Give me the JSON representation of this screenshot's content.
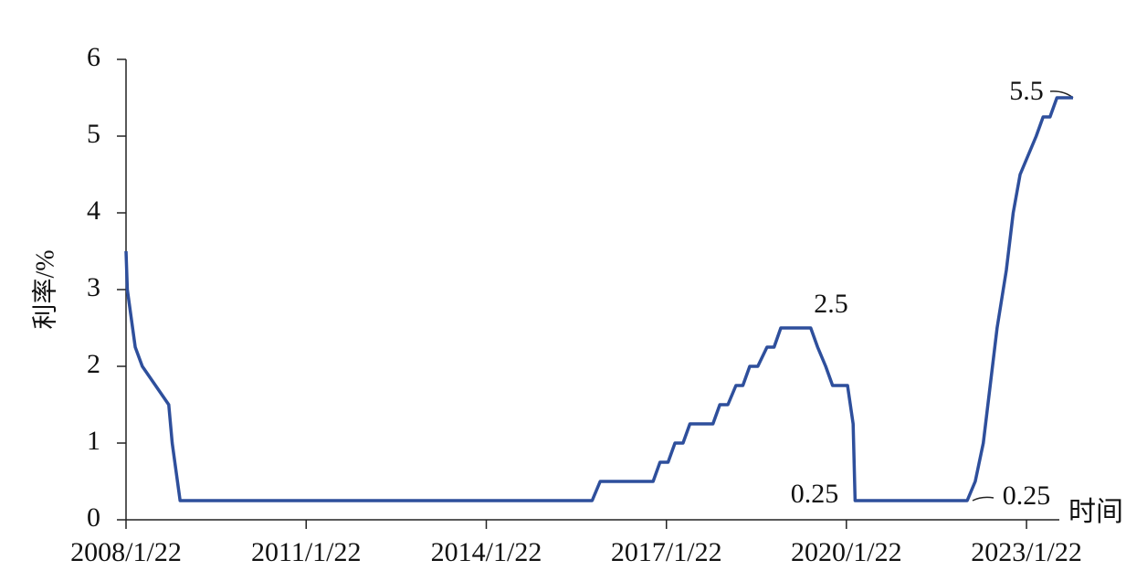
{
  "chart_data": {
    "type": "line",
    "y_label": "利率/%",
    "x_label": "时间",
    "x": [
      "2008/1/22",
      "2008/1/30",
      "2008/3/18",
      "2008/4/30",
      "2008/10/8",
      "2008/10/29",
      "2008/12/16",
      "2015/10/28",
      "2015/12/16",
      "2016/11/2",
      "2016/12/14",
      "2017/2/1",
      "2017/3/15",
      "2017/5/3",
      "2017/6/14",
      "2017/11/1",
      "2017/12/13",
      "2018/1/31",
      "2018/3/21",
      "2018/5/2",
      "2018/6/13",
      "2018/8/1",
      "2018/9/26",
      "2018/11/8",
      "2018/12/19",
      "2019/6/19",
      "2019/7/31",
      "2019/9/18",
      "2019/10/30",
      "2020/1/29",
      "2020/3/3",
      "2020/3/15",
      "2022/1/26",
      "2022/3/16",
      "2022/5/4",
      "2022/6/15",
      "2022/7/27",
      "2022/9/21",
      "2022/11/2",
      "2022/12/14",
      "2023/2/1",
      "2023/3/22",
      "2023/5/3",
      "2023/6/14",
      "2023/7/26",
      "2023/11/1"
    ],
    "values": [
      3.5,
      3.0,
      2.25,
      2.0,
      1.5,
      1.0,
      0.25,
      0.25,
      0.5,
      0.5,
      0.75,
      0.75,
      1.0,
      1.0,
      1.25,
      1.25,
      1.5,
      1.5,
      1.75,
      1.75,
      2.0,
      2.0,
      2.25,
      2.25,
      2.5,
      2.5,
      2.25,
      2.0,
      1.75,
      1.75,
      1.25,
      0.25,
      0.25,
      0.5,
      1.0,
      1.75,
      2.5,
      3.25,
      4.0,
      4.5,
      4.75,
      5.0,
      5.25,
      5.25,
      5.5,
      5.5
    ],
    "color": "#2e4f9c",
    "xlim": [
      "2008/1/22",
      "2023/11/1"
    ],
    "xticks": [
      "2008/1/22",
      "2011/1/22",
      "2014/1/22",
      "2017/1/22",
      "2020/1/22",
      "2023/1/22"
    ],
    "ylim": [
      0,
      6
    ],
    "yticks": [
      0,
      1,
      2,
      3,
      4,
      5,
      6
    ],
    "annotations": [
      "2.5",
      "0.25",
      "0.25",
      "5.5"
    ]
  }
}
